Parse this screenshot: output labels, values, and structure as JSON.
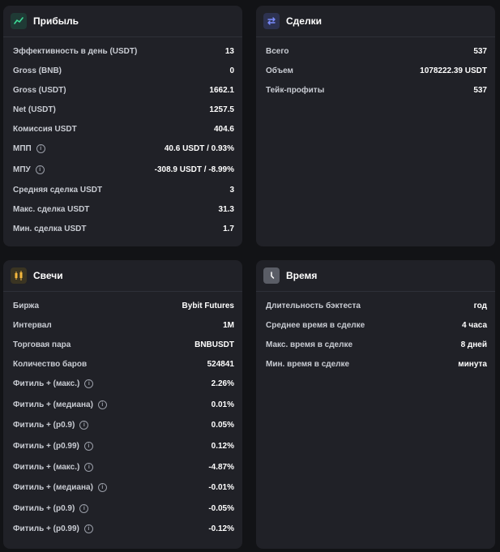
{
  "profit": {
    "title": "Прибыль",
    "icon": "trend-line-icon",
    "rows": [
      {
        "label": "Эффективность в день (USDT)",
        "value": "13"
      },
      {
        "label": "Gross (BNB)",
        "value": "0"
      },
      {
        "label": "Gross (USDT)",
        "value": "1662.1"
      },
      {
        "label": "Net (USDT)",
        "value": "1257.5"
      },
      {
        "label": "Комиссия USDT",
        "value": "404.6"
      },
      {
        "label": "МПП",
        "value": "40.6 USDT / 0.93%"
      },
      {
        "label": "МПУ",
        "value": "-308.9 USDT / -8.99%"
      },
      {
        "label": "Средняя сделка USDT",
        "value": "3"
      },
      {
        "label": "Макс. сделка USDT",
        "value": "31.3"
      },
      {
        "label": "Мин. сделка USDT",
        "value": "1.7"
      }
    ]
  },
  "deals": {
    "title": "Сделки",
    "icon": "swap-arrows-icon",
    "rows": [
      {
        "label": "Всего",
        "value": "537"
      },
      {
        "label": "Объем",
        "value": "1078222.39 USDT"
      },
      {
        "label": "Тейк-профиты",
        "value": "537"
      }
    ]
  },
  "candles": {
    "title": "Свечи",
    "icon": "candlestick-icon",
    "rows": [
      {
        "label": "Биржа",
        "value": "Bybit Futures"
      },
      {
        "label": "Интервал",
        "value": "1M"
      },
      {
        "label": "Торговая пара",
        "value": "BNBUSDT"
      },
      {
        "label": "Количество баров",
        "value": "524841"
      },
      {
        "label": "Фитиль + (макс.)",
        "value": "2.26%"
      },
      {
        "label": "Фитиль + (медиана)",
        "value": "0.01%"
      },
      {
        "label": "Фитиль + (p0.9)",
        "value": "0.05%"
      },
      {
        "label": "Фитиль + (p0.99)",
        "value": "0.12%"
      },
      {
        "label": "Фитиль + (макс.)",
        "value": "-4.87%"
      },
      {
        "label": "Фитиль + (медиана)",
        "value": "-0.01%"
      },
      {
        "label": "Фитиль + (p0.9)",
        "value": "-0.05%"
      },
      {
        "label": "Фитиль + (p0.99)",
        "value": "-0.12%"
      }
    ]
  },
  "time": {
    "title": "Время",
    "icon": "clock-icon",
    "rows": [
      {
        "label": "Длительность бэктеста",
        "value": "год"
      },
      {
        "label": "Среднее время в сделке",
        "value": "4 часа"
      },
      {
        "label": "Макс. время в сделке",
        "value": "8 дней"
      },
      {
        "label": "Мин. время в сделке",
        "value": "минута"
      }
    ]
  },
  "info_glyph": "i",
  "colors": {
    "background": "#121316",
    "card": "#202127",
    "profit_icon_bg": "#1f3a35",
    "profit_icon_fg": "#3ddc97",
    "deals_icon_bg": "#2d3250",
    "deals_icon_fg": "#7b8cff",
    "candles_icon_bg": "#3a3422",
    "candles_icon_fg": "#f5b83d",
    "time_icon_bg": "#5a5d66"
  }
}
